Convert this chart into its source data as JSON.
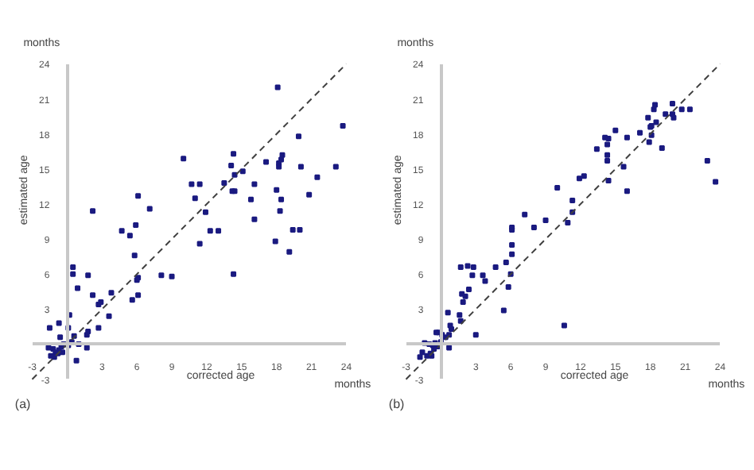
{
  "chart_data": [
    {
      "type": "scatter",
      "xlabel": "corrected age",
      "ylabel": "estimated age",
      "annotations": [
        "months",
        "months",
        "(a)"
      ],
      "xlim": [
        -3,
        24
      ],
      "ylim": [
        -3,
        24
      ],
      "xticks": [
        -3,
        3,
        6,
        9,
        12,
        15,
        18,
        21,
        24
      ],
      "yticks": [
        -3,
        3,
        6,
        9,
        12,
        15,
        18,
        21,
        24
      ],
      "grid": false,
      "series": [
        {
          "color": "#1a1a80",
          "marker": "square",
          "x": [
            10.0,
            18.1,
            23.7,
            19.9,
            14.3,
            17.1,
            18.5,
            18.4,
            18.2,
            18.2,
            14.1,
            15.1,
            20.1,
            23.1,
            21.5,
            13.5,
            14.4,
            14.4,
            14.2,
            16.1,
            10.7,
            11.4,
            11.0,
            18.0,
            20.8,
            15.8,
            18.4,
            18.3,
            11.9,
            16.1,
            6.1,
            7.1,
            2.2,
            5.9,
            4.7,
            13.0,
            19.4,
            20.0,
            5.4,
            12.3,
            11.4,
            17.9,
            19.1,
            14.3,
            8.1,
            9.0,
            5.8,
            0.5,
            0.5,
            1.8,
            0.9,
            2.2,
            3.8,
            6.1,
            6.0,
            6.1,
            5.6,
            2.9,
            2.7,
            3.6,
            0.2,
            -1.5,
            -0.7,
            0.1,
            2.7,
            1.8,
            1.7,
            0.6,
            0.4,
            1.0,
            1.7,
            0.8,
            -1.6,
            -1.2,
            -1.0,
            -0.7,
            -0.5,
            -0.3,
            -0.8,
            -1.4,
            -1.1,
            -0.4,
            0.1,
            -0.6
          ],
          "values": [
            15.9,
            22.0,
            18.7,
            17.8,
            16.3,
            15.6,
            16.2,
            15.8,
            15.5,
            15.2,
            15.3,
            14.8,
            15.2,
            15.2,
            14.3,
            13.8,
            14.5,
            13.1,
            13.1,
            13.7,
            13.7,
            13.7,
            12.5,
            13.2,
            12.8,
            12.4,
            12.4,
            11.4,
            11.3,
            10.7,
            12.7,
            11.6,
            11.4,
            10.2,
            9.7,
            9.7,
            9.8,
            9.8,
            9.3,
            9.7,
            8.6,
            8.8,
            7.9,
            6.0,
            5.9,
            5.8,
            7.6,
            6.6,
            6.0,
            5.9,
            4.8,
            4.2,
            4.4,
            5.7,
            5.5,
            4.2,
            3.8,
            3.6,
            3.4,
            2.4,
            2.5,
            1.4,
            1.8,
            1.4,
            1.4,
            1.1,
            0.8,
            0.7,
            0.2,
            0.0,
            -0.3,
            -1.4,
            -0.3,
            -0.4,
            -0.7,
            -0.5,
            -0.2,
            0.0,
            -0.8,
            -1.0,
            -1.1,
            -0.7,
            -0.1,
            0.6
          ]
        },
        {
          "type": "line",
          "color": "#404040",
          "line_style": "dashed",
          "x": [
            -3,
            24
          ],
          "values": [
            -3,
            24
          ]
        }
      ]
    },
    {
      "type": "scatter",
      "xlabel": "corrected age",
      "ylabel": "estimated age",
      "annotations": [
        "months",
        "months",
        "(b)"
      ],
      "xlim": [
        -3,
        24
      ],
      "ylim": [
        -3,
        24
      ],
      "xticks": [
        -3,
        3,
        6,
        9,
        12,
        15,
        18,
        21,
        24
      ],
      "yticks": [
        -3,
        3,
        6,
        9,
        12,
        15,
        18,
        21,
        24
      ],
      "grid": false,
      "series": [
        {
          "color": "#1a1a80",
          "marker": "square",
          "x": [
            18.4,
            19.9,
            18.3,
            19.3,
            19.9,
            17.8,
            18.5,
            18.1,
            18.0,
            20.7,
            21.4,
            20.0,
            17.1,
            15.0,
            16.0,
            18.1,
            17.9,
            14.1,
            14.4,
            14.3,
            13.4,
            19.0,
            14.3,
            14.3,
            22.9,
            23.6,
            15.7,
            11.9,
            12.3,
            14.4,
            16.0,
            10.0,
            11.3,
            7.2,
            9.0,
            11.3,
            8.0,
            10.9,
            6.1,
            6.1,
            6.1,
            6.1,
            5.6,
            4.7,
            1.7,
            2.3,
            2.8,
            2.7,
            3.6,
            3.8,
            6.0,
            5.8,
            1.8,
            2.1,
            2.4,
            1.9,
            5.4,
            0.6,
            1.6,
            1.7,
            0.8,
            0.9,
            3.0,
            10.6,
            -0.4,
            -0.2,
            0.1,
            0.4,
            0.7,
            0.7,
            -1.4,
            -1.0,
            -0.7,
            -0.5,
            -0.3,
            -0.9,
            -1.2,
            -1.6,
            -0.6,
            0.0,
            -1.8,
            -0.8
          ],
          "values": [
            20.5,
            20.6,
            20.1,
            19.7,
            19.7,
            19.4,
            19.0,
            18.7,
            18.6,
            20.1,
            20.1,
            19.4,
            18.1,
            18.3,
            17.7,
            17.9,
            17.3,
            17.7,
            17.6,
            17.1,
            16.7,
            16.8,
            16.2,
            15.7,
            15.7,
            13.9,
            15.2,
            14.2,
            14.4,
            14.0,
            13.1,
            13.4,
            12.3,
            11.1,
            10.6,
            11.3,
            10.0,
            10.4,
            10.0,
            9.8,
            8.5,
            7.7,
            7.0,
            6.6,
            6.6,
            6.7,
            6.6,
            5.9,
            5.9,
            5.4,
            6.0,
            4.9,
            4.3,
            4.1,
            4.7,
            3.6,
            2.9,
            2.7,
            2.5,
            2.0,
            1.6,
            1.3,
            0.8,
            1.6,
            1.0,
            1.0,
            0.8,
            0.6,
            0.8,
            -0.3,
            0.1,
            0.0,
            -0.1,
            0.1,
            -0.2,
            -0.8,
            -1.0,
            -0.7,
            -0.4,
            0.2,
            -1.1,
            -1.0
          ]
        },
        {
          "type": "line",
          "color": "#404040",
          "line_style": "dashed",
          "x": [
            -3,
            24
          ],
          "values": [
            -3,
            24
          ]
        }
      ]
    }
  ]
}
